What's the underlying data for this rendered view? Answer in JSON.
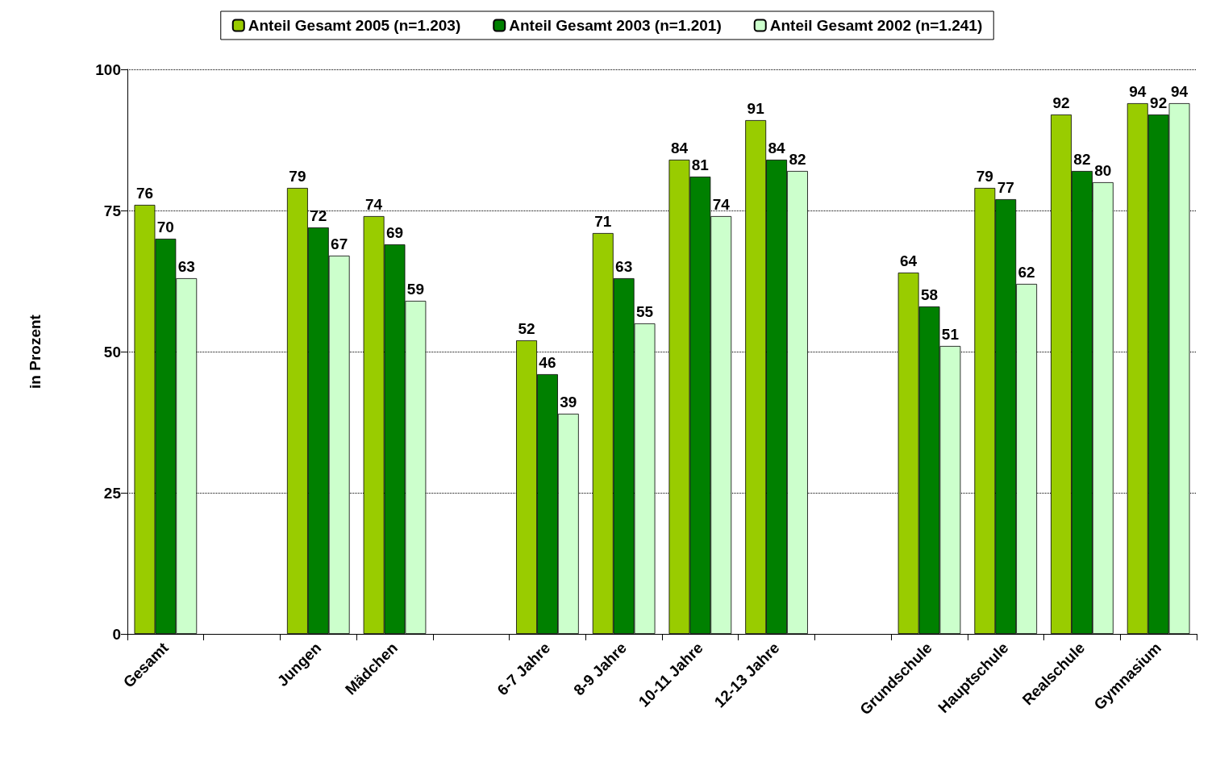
{
  "chart_data": {
    "type": "bar",
    "ylabel": "in Prozent",
    "categories": [
      "Gesamt",
      null,
      "Jungen",
      "Mädchen",
      null,
      "6-7 Jahre",
      "8-9 Jahre",
      "10-11 Jahre",
      "12-13 Jahre",
      null,
      "Grundschule",
      "Hauptschule",
      "Realschule",
      "Gymnasium"
    ],
    "series": [
      {
        "name": "Anteil Gesamt 2005 (n=1.203)",
        "color": "#99cc00",
        "values": [
          76,
          null,
          79,
          74,
          null,
          52,
          71,
          84,
          91,
          null,
          64,
          79,
          92,
          94
        ]
      },
      {
        "name": "Anteil Gesamt 2003 (n=1.201)",
        "color": "#008000",
        "values": [
          70,
          null,
          72,
          69,
          null,
          46,
          63,
          81,
          84,
          null,
          58,
          77,
          82,
          92
        ]
      },
      {
        "name": "Anteil Gesamt 2002 (n=1.241)",
        "color": "#ccffcc",
        "values": [
          63,
          null,
          67,
          59,
          null,
          39,
          55,
          74,
          82,
          null,
          51,
          62,
          80,
          94
        ]
      }
    ],
    "ylim": [
      0,
      100
    ],
    "yticks": [
      0,
      25,
      50,
      75,
      100
    ],
    "grid": "y",
    "legend": "top",
    "data_labels": true
  }
}
